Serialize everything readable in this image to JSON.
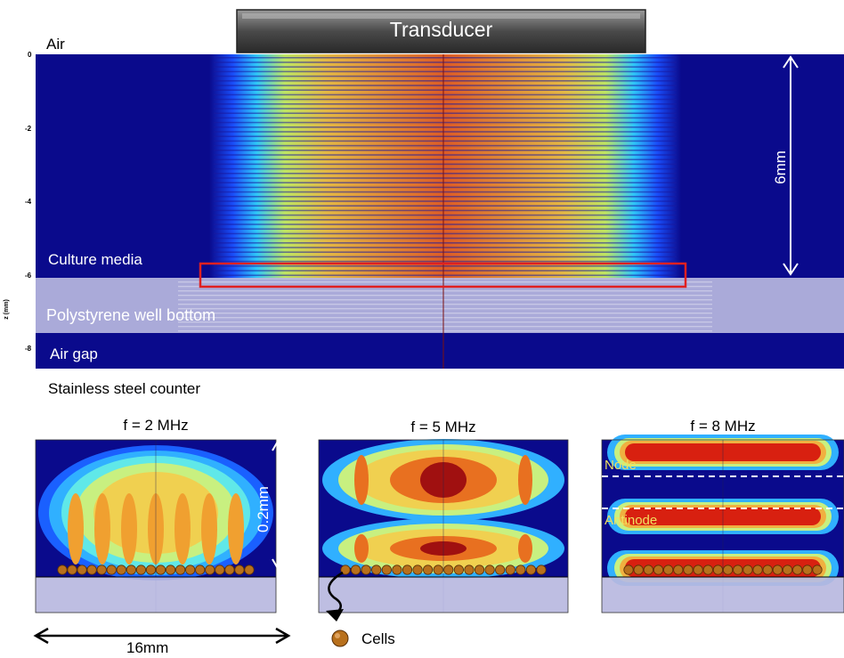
{
  "transducer_label": "Transducer",
  "layers": {
    "air": "Air",
    "culture_media": "Culture media",
    "polystyrene": "Polystyrene well bottom",
    "air_gap": "Air gap",
    "steel": "Stainless steel counter"
  },
  "dimension_6mm": "6mm",
  "axis": {
    "z_label": "z (mm)",
    "ticks": [
      "0",
      "-2",
      "-4",
      "-6",
      "-8"
    ]
  },
  "panels": [
    {
      "title": "f = 2 MHz",
      "dim_label": "0.2mm"
    },
    {
      "title": "f = 5 MHz"
    },
    {
      "title": "f = 8 MHz",
      "node_label": "Node",
      "antinode_label": "Antinode"
    }
  ],
  "width_label": "16mm",
  "legend_cells": "Cells",
  "colors": {
    "deep_blue": "#0a0a8c",
    "highlight_red": "#e02020",
    "transducer_gray": "#5a5a5a",
    "polystyrene": "#b8b8e0",
    "cell_brown": "#b8701c"
  }
}
